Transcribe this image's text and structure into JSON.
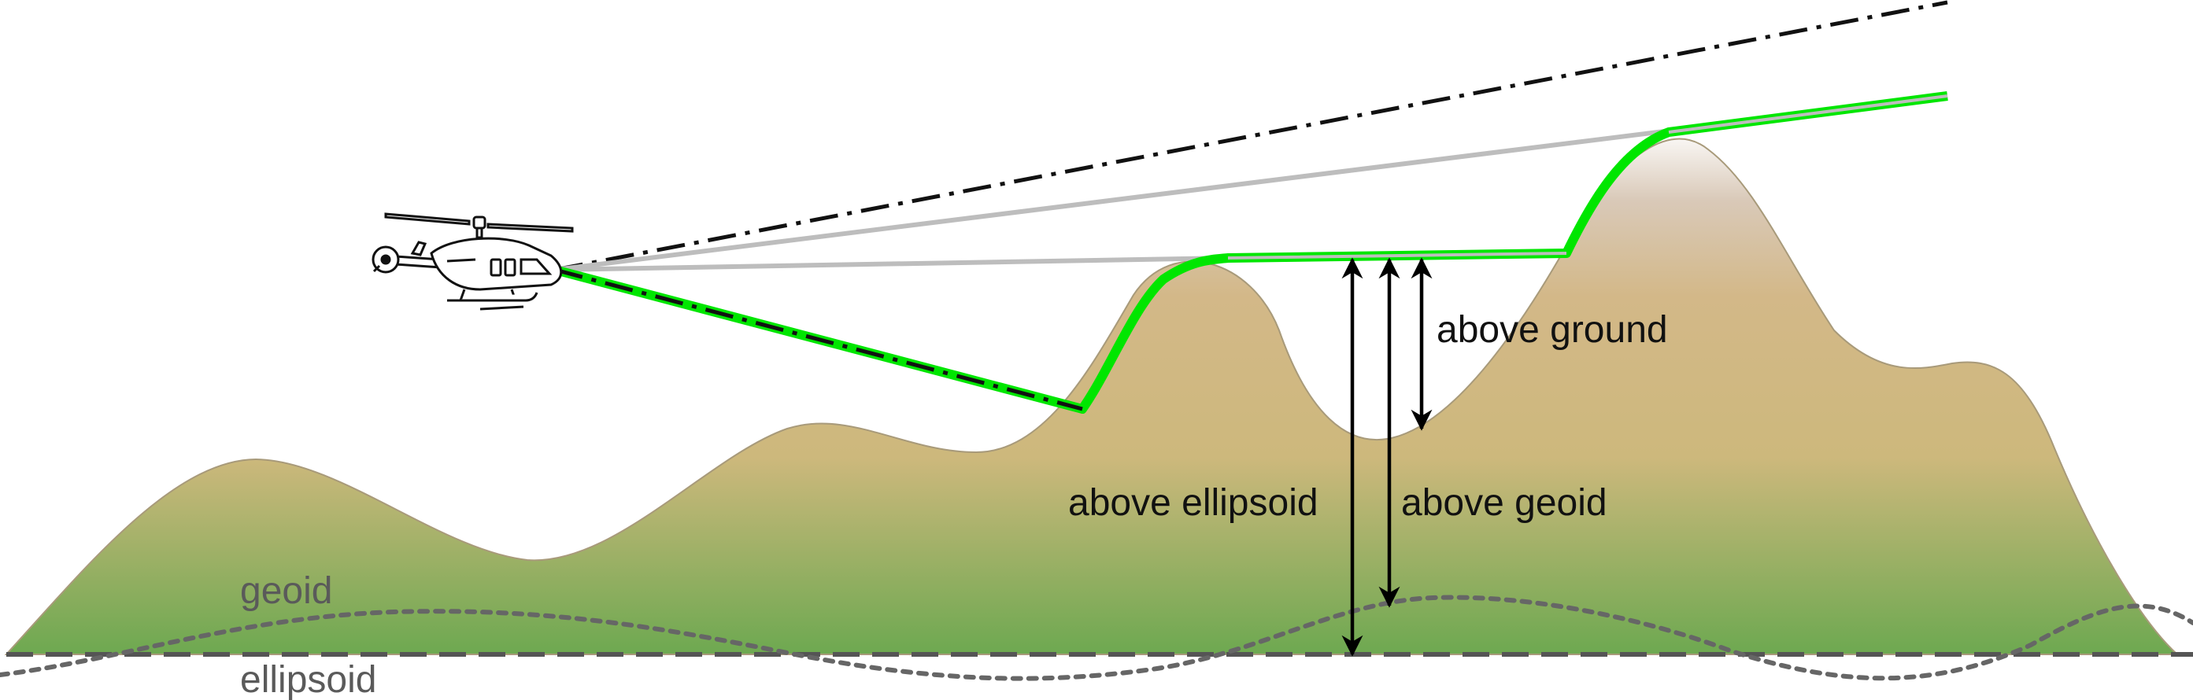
{
  "labels": {
    "above_ground": "above ground",
    "above_ellipsoid": "above ellipsoid",
    "above_geoid": "above geoid",
    "geoid": "geoid",
    "ellipsoid": "ellipsoid"
  },
  "colors": {
    "terrain_top": "#d9c9b8",
    "terrain_mid": "#cdb27a",
    "terrain_bottom": "#6aa84f",
    "terrain_outline": "#a89a7a",
    "profile_green": "#00e600",
    "sightline_gray": "#bdbdbd",
    "dashdot_black": "#111111",
    "geoid_dotted": "#666666",
    "ellipsoid_dashed": "#555555",
    "arrow_black": "#000000"
  },
  "icons": {
    "aircraft": "helicopter-icon"
  }
}
